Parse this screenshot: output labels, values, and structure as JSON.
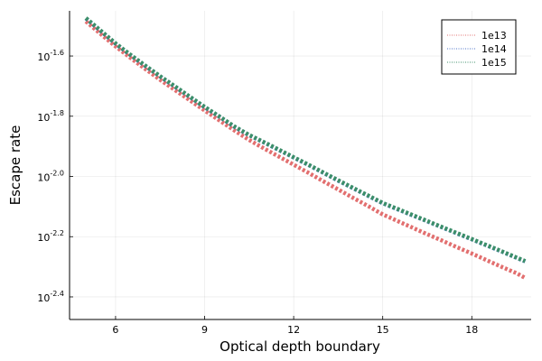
{
  "chart_data": {
    "type": "line",
    "title": "",
    "xlabel": "Optical depth boundary",
    "ylabel": "Escape rate",
    "x_ticks": [
      6,
      9,
      12,
      15,
      18
    ],
    "y_ticks": [
      {
        "base": "10",
        "exp": "-1.6",
        "value": -1.6
      },
      {
        "base": "10",
        "exp": "-1.8",
        "value": -1.8
      },
      {
        "base": "10",
        "exp": "-2.0",
        "value": -2.0
      },
      {
        "base": "10",
        "exp": "-2.2",
        "value": -2.2
      },
      {
        "base": "10",
        "exp": "-2.4",
        "value": -2.4
      }
    ],
    "y_scale": "log10",
    "xlim": [
      4.45,
      20.0
    ],
    "ylim_log10": [
      -2.475,
      -1.45
    ],
    "grid": true,
    "legend_position": "top-right",
    "x": [
      5,
      5.5,
      6,
      6.5,
      7,
      7.5,
      8,
      8.5,
      9,
      9.5,
      10,
      10.5,
      11,
      11.5,
      12,
      12.5,
      13,
      13.5,
      14,
      14.5,
      15,
      15.5,
      16,
      16.5,
      17,
      17.5,
      18,
      18.5,
      19,
      19.5,
      19.8
    ],
    "series": [
      {
        "name": "1e13",
        "color": "#e26f6f",
        "log10_values": [
          -1.485,
          -1.527,
          -1.568,
          -1.606,
          -1.643,
          -1.679,
          -1.713,
          -1.747,
          -1.781,
          -1.814,
          -1.847,
          -1.879,
          -1.907,
          -1.934,
          -1.961,
          -1.988,
          -2.016,
          -2.043,
          -2.071,
          -2.098,
          -2.126,
          -2.148,
          -2.17,
          -2.192,
          -2.213,
          -2.235,
          -2.256,
          -2.278,
          -2.3,
          -2.321,
          -2.337
        ]
      },
      {
        "name": "1e14",
        "color": "#4b71c7",
        "log10_values": [
          -1.475,
          -1.517,
          -1.559,
          -1.597,
          -1.633,
          -1.668,
          -1.702,
          -1.736,
          -1.77,
          -1.802,
          -1.835,
          -1.863,
          -1.887,
          -1.912,
          -1.937,
          -1.962,
          -1.988,
          -2.014,
          -2.039,
          -2.064,
          -2.089,
          -2.109,
          -2.129,
          -2.149,
          -2.169,
          -2.189,
          -2.209,
          -2.229,
          -2.249,
          -2.27,
          -2.282
        ]
      },
      {
        "name": "1e15",
        "color": "#3c8f69",
        "log10_values": [
          -1.474,
          -1.516,
          -1.558,
          -1.596,
          -1.632,
          -1.667,
          -1.701,
          -1.735,
          -1.769,
          -1.801,
          -1.834,
          -1.862,
          -1.886,
          -1.911,
          -1.936,
          -1.961,
          -1.987,
          -2.013,
          -2.038,
          -2.063,
          -2.088,
          -2.108,
          -2.128,
          -2.148,
          -2.168,
          -2.188,
          -2.208,
          -2.228,
          -2.248,
          -2.269,
          -2.281
        ]
      }
    ]
  }
}
